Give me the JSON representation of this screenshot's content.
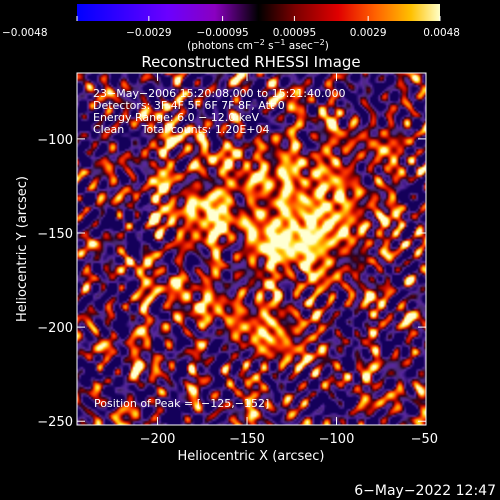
{
  "chart_data": {
    "type": "heatmap",
    "title": "Reconstructed RHESSI Image",
    "xlabel": "Heliocentric X (arcsec)",
    "ylabel": "Heliocentric Y (arcsec)",
    "xlim": [
      -245,
      -50
    ],
    "ylim": [
      -252,
      -65
    ],
    "x_ticks": [
      -200,
      -150,
      -100,
      -50
    ],
    "x_tick_labels": [
      "−200",
      "−150",
      "−100",
      "−50"
    ],
    "y_ticks": [
      -100,
      -150,
      -200,
      -250
    ],
    "y_tick_labels": [
      "−100",
      "−150",
      "−200",
      "−250"
    ],
    "colorbar": {
      "range": [
        -0.0048,
        0.0048
      ],
      "ticks": [
        -0.0048,
        -0.0029,
        -0.00095,
        0.00095,
        0.0029,
        0.0048
      ],
      "tick_labels": [
        "−0.0048",
        "−0.0029",
        "−0.00095",
        "0.00095",
        "0.0029",
        "0.0048"
      ],
      "unit_prefix": "(photons cm",
      "unit_exp1": "−2",
      "unit_mid1": " s",
      "unit_exp2": "−1",
      "unit_mid2": " asec",
      "unit_exp3": "−2",
      "unit_suffix": ")"
    },
    "annotations": [
      "23−May−2006 15:20:08.000 to 15:21:40.000",
      "Detectors: 3F 4F 5F 6F 7F 8F, Att 0",
      "Energy Range: 6.0 − 12.0 keV",
      "Clean     Total counts: 1.20E+04"
    ],
    "peak_label": "Position of Peak = [−125,−152]",
    "peak": [
      -125,
      -152
    ],
    "sources": [
      {
        "x": -125,
        "y": -152,
        "amp": 1.0,
        "sx": 16,
        "sy": 11
      },
      {
        "x": -172,
        "y": -142,
        "amp": 0.78,
        "sx": 14,
        "sy": 10
      },
      {
        "x": -150,
        "y": -120,
        "amp": 0.55,
        "sx": 18,
        "sy": 14
      },
      {
        "x": -110,
        "y": -118,
        "amp": 0.5,
        "sx": 14,
        "sy": 16
      },
      {
        "x": -95,
        "y": -150,
        "amp": 0.5,
        "sx": 14,
        "sy": 18
      },
      {
        "x": -175,
        "y": -185,
        "amp": 0.45,
        "sx": 18,
        "sy": 15
      },
      {
        "x": -130,
        "y": -200,
        "amp": 0.45,
        "sx": 18,
        "sy": 18
      },
      {
        "x": -195,
        "y": -110,
        "amp": 0.35,
        "sx": 16,
        "sy": 14
      },
      {
        "x": -80,
        "y": -110,
        "amp": 0.3,
        "sx": 12,
        "sy": 16
      }
    ]
  },
  "footer": {
    "date": "6−May−2022 12:47"
  },
  "colors": {
    "background": "#000000",
    "foreground": "#ffffff",
    "colormap": [
      "#0000ff",
      "#6b00ff",
      "#a000d8",
      "#4a2a5a",
      "#3a0000",
      "#aa0000",
      "#ff3000",
      "#ff9000",
      "#ffe000",
      "#ffffcc"
    ]
  }
}
